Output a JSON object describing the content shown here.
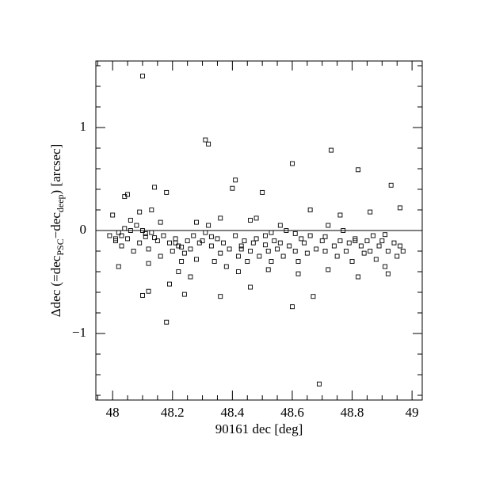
{
  "chart_data": {
    "type": "scatter",
    "xlabel": "90161 dec [deg]",
    "ylabel": [
      "Δdec (=dec",
      "PSC",
      "−dec",
      "deep",
      ") [arcsec]"
    ],
    "xlim": [
      47.944,
      49.034
    ],
    "ylim": [
      -1.646,
      1.646
    ],
    "xticks": [
      48,
      48.2,
      48.4,
      48.6,
      48.8,
      49
    ],
    "yticks": [
      {
        "value": -1,
        "label": "−1"
      },
      0,
      1
    ],
    "xminorticks": [
      47.95,
      48.05,
      48.1,
      48.15,
      48.25,
      48.3,
      48.35,
      48.45,
      48.5,
      48.55,
      48.65,
      48.7,
      48.75,
      48.85,
      48.9,
      48.95
    ],
    "yminorticks": [
      -1.6,
      -1.4,
      -1.2,
      -0.8,
      -0.6,
      -0.4,
      -0.2,
      0.2,
      0.4,
      0.6,
      0.8,
      1.2,
      1.4,
      1.6
    ],
    "hline": 0,
    "series": [
      {
        "color": "#000000",
        "x": [
          47.99,
          48.0,
          48.01,
          48.02,
          48.03,
          48.04,
          48.05,
          48.06,
          48.07,
          48.08,
          48.09,
          48.1,
          48.11,
          48.12,
          48.13,
          48.14,
          48.15,
          48.16,
          48.17,
          48.19,
          48.2,
          48.21,
          48.22,
          48.23,
          48.24,
          48.25,
          48.26,
          48.27,
          48.28,
          48.29,
          48.3,
          48.33,
          48.34,
          48.35,
          48.36,
          48.37,
          48.38,
          48.39,
          48.42,
          48.43,
          48.44,
          48.45,
          48.46,
          48.47,
          48.48,
          48.49,
          48.51,
          48.52,
          48.53,
          48.54,
          48.55,
          48.56,
          48.57,
          48.58,
          48.59,
          48.61,
          48.62,
          48.63,
          48.64,
          48.65,
          48.66,
          48.68,
          48.7,
          48.71,
          48.72,
          48.74,
          48.75,
          48.76,
          48.77,
          48.78,
          48.79,
          48.8,
          48.81,
          48.83,
          48.84,
          48.85,
          48.86,
          48.87,
          48.88,
          48.89,
          48.9,
          48.91,
          48.92,
          48.94,
          48.95,
          48.96,
          48.97,
          48.02,
          48.12,
          48.22,
          48.32,
          48.42,
          48.52,
          48.62,
          48.72,
          48.82,
          48.92,
          48.06,
          48.16,
          48.26,
          48.36,
          48.46,
          48.56,
          48.66,
          48.76,
          48.86,
          48.96,
          48.09,
          48.28,
          48.48,
          48.1,
          48.31,
          48.32,
          48.6,
          48.73,
          48.82,
          48.93,
          48.41,
          48.4,
          48.14,
          48.18,
          48.5,
          48.04,
          48.05,
          48.18,
          48.6,
          48.69,
          48.67,
          48.1,
          48.12,
          48.24,
          48.36,
          48.19,
          48.46,
          48.01,
          48.11,
          48.21,
          48.31,
          48.41,
          48.51,
          48.61,
          48.71,
          48.81,
          48.91,
          48.03,
          48.13,
          48.23,
          48.33,
          48.43,
          48.53
        ],
        "values": [
          -0.05,
          0.15,
          -0.1,
          -0.02,
          -0.15,
          0.02,
          -0.08,
          0.0,
          -0.2,
          0.05,
          -0.12,
          0.0,
          -0.03,
          -0.18,
          0.2,
          -0.07,
          -0.1,
          -0.25,
          -0.05,
          -0.12,
          -0.2,
          -0.08,
          -0.15,
          -0.3,
          -0.22,
          -0.1,
          -0.18,
          -0.05,
          -0.28,
          -0.12,
          -0.1,
          -0.15,
          -0.3,
          -0.08,
          -0.22,
          -0.12,
          -0.35,
          -0.18,
          -0.25,
          -0.15,
          -0.1,
          -0.3,
          -0.2,
          -0.12,
          -0.08,
          -0.25,
          -0.05,
          -0.2,
          -0.3,
          -0.1,
          -0.18,
          -0.12,
          -0.25,
          0.0,
          -0.15,
          -0.2,
          -0.3,
          -0.08,
          -0.12,
          -0.22,
          -0.05,
          -0.18,
          -0.1,
          -0.2,
          0.05,
          -0.15,
          -0.25,
          -0.1,
          0.0,
          -0.2,
          -0.12,
          -0.3,
          -0.08,
          -0.15,
          -0.22,
          -0.1,
          -0.2,
          -0.05,
          -0.28,
          -0.15,
          -0.1,
          -0.35,
          -0.2,
          -0.12,
          -0.25,
          -0.15,
          -0.2,
          -0.35,
          -0.32,
          -0.4,
          0.05,
          -0.4,
          -0.38,
          -0.42,
          -0.38,
          -0.45,
          -0.42,
          0.1,
          0.08,
          -0.45,
          0.12,
          0.1,
          0.05,
          0.2,
          0.15,
          0.18,
          0.22,
          0.18,
          0.08,
          0.12,
          1.5,
          0.88,
          0.84,
          0.65,
          0.78,
          0.59,
          0.44,
          0.49,
          0.41,
          0.42,
          0.37,
          0.37,
          0.33,
          0.35,
          -0.89,
          -0.74,
          -1.49,
          -0.64,
          -0.63,
          -0.59,
          -0.62,
          -0.64,
          -0.52,
          -0.55,
          -0.08,
          -0.06,
          -0.12,
          -0.02,
          -0.05,
          -0.14,
          -0.03,
          -0.06,
          -0.1,
          -0.04,
          -0.05,
          -0.02,
          -0.16,
          -0.06,
          -0.18,
          -0.02
        ]
      }
    ]
  }
}
